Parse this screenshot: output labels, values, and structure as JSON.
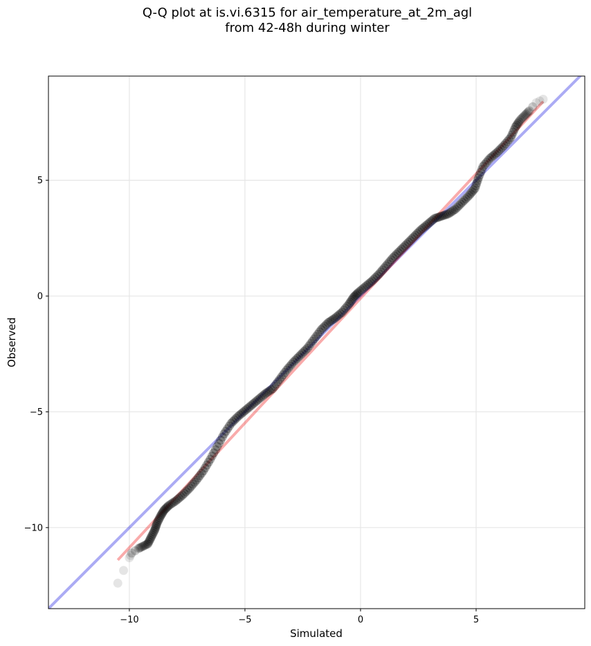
{
  "chart_data": {
    "type": "scatter",
    "title": "Q-Q plot at is.vi.6315 for air_temperature_at_2m_agl",
    "subtitle": "from 42-48h during winter",
    "xlabel": "Simulated",
    "ylabel": "Observed",
    "xlim": [
      -13.5,
      9.7
    ],
    "ylim": [
      -13.5,
      9.5
    ],
    "xticks": [
      -10,
      -5,
      0,
      5
    ],
    "yticks": [
      -10,
      -5,
      0,
      5
    ],
    "xtick_labels": [
      "−10",
      "−5",
      "0",
      "5"
    ],
    "ytick_labels": [
      "−10",
      "−5",
      "0",
      "5"
    ],
    "grid": true,
    "identity_line": {
      "color": "#0000dd",
      "x": [
        -13.5,
        9.7
      ],
      "y": [
        -13.5,
        9.7
      ]
    },
    "fit_line": {
      "color": "#ee0000",
      "x": [
        -10.5,
        7.9
      ],
      "y": [
        -11.4,
        8.4
      ]
    },
    "quantiles": [
      {
        "x": -10.5,
        "y": -12.4
      },
      {
        "x": -10.0,
        "y": -11.3
      },
      {
        "x": -9.9,
        "y": -11.1
      },
      {
        "x": -9.6,
        "y": -10.9
      },
      {
        "x": -9.4,
        "y": -10.8
      },
      {
        "x": -9.2,
        "y": -10.7
      },
      {
        "x": -9.05,
        "y": -10.4
      },
      {
        "x": -8.9,
        "y": -10.1
      },
      {
        "x": -8.8,
        "y": -9.8
      },
      {
        "x": -8.65,
        "y": -9.5
      },
      {
        "x": -8.5,
        "y": -9.25
      },
      {
        "x": -8.3,
        "y": -9.05
      },
      {
        "x": -8.0,
        "y": -8.85
      },
      {
        "x": -7.7,
        "y": -8.6
      },
      {
        "x": -7.4,
        "y": -8.3
      },
      {
        "x": -7.1,
        "y": -7.95
      },
      {
        "x": -6.8,
        "y": -7.55
      },
      {
        "x": -6.5,
        "y": -7.05
      },
      {
        "x": -6.2,
        "y": -6.5
      },
      {
        "x": -5.9,
        "y": -5.95
      },
      {
        "x": -5.6,
        "y": -5.5
      },
      {
        "x": -5.3,
        "y": -5.2
      },
      {
        "x": -5.0,
        "y": -4.95
      },
      {
        "x": -4.7,
        "y": -4.7
      },
      {
        "x": -4.4,
        "y": -4.45
      },
      {
        "x": -4.1,
        "y": -4.2
      },
      {
        "x": -3.8,
        "y": -4.0
      },
      {
        "x": -3.5,
        "y": -3.6
      },
      {
        "x": -3.2,
        "y": -3.2
      },
      {
        "x": -2.9,
        "y": -2.85
      },
      {
        "x": -2.6,
        "y": -2.55
      },
      {
        "x": -2.3,
        "y": -2.25
      },
      {
        "x": -2.0,
        "y": -1.85
      },
      {
        "x": -1.7,
        "y": -1.45
      },
      {
        "x": -1.4,
        "y": -1.15
      },
      {
        "x": -1.1,
        "y": -0.95
      },
      {
        "x": -0.8,
        "y": -0.7
      },
      {
        "x": -0.5,
        "y": -0.35
      },
      {
        "x": -0.3,
        "y": -0.05
      },
      {
        "x": -0.1,
        "y": 0.15
      },
      {
        "x": 0.2,
        "y": 0.4
      },
      {
        "x": 0.5,
        "y": 0.65
      },
      {
        "x": 0.8,
        "y": 0.95
      },
      {
        "x": 1.1,
        "y": 1.3
      },
      {
        "x": 1.4,
        "y": 1.65
      },
      {
        "x": 1.7,
        "y": 1.95
      },
      {
        "x": 2.0,
        "y": 2.25
      },
      {
        "x": 2.3,
        "y": 2.55
      },
      {
        "x": 2.6,
        "y": 2.85
      },
      {
        "x": 2.9,
        "y": 3.1
      },
      {
        "x": 3.2,
        "y": 3.35
      },
      {
        "x": 3.5,
        "y": 3.45
      },
      {
        "x": 3.8,
        "y": 3.55
      },
      {
        "x": 4.1,
        "y": 3.75
      },
      {
        "x": 4.4,
        "y": 4.05
      },
      {
        "x": 4.7,
        "y": 4.35
      },
      {
        "x": 4.95,
        "y": 4.65
      },
      {
        "x": 5.1,
        "y": 5.1
      },
      {
        "x": 5.3,
        "y": 5.6
      },
      {
        "x": 5.6,
        "y": 5.95
      },
      {
        "x": 5.9,
        "y": 6.2
      },
      {
        "x": 6.2,
        "y": 6.5
      },
      {
        "x": 6.5,
        "y": 6.85
      },
      {
        "x": 6.7,
        "y": 7.3
      },
      {
        "x": 6.9,
        "y": 7.6
      },
      {
        "x": 7.1,
        "y": 7.8
      },
      {
        "x": 7.3,
        "y": 8.0
      },
      {
        "x": 7.6,
        "y": 8.35
      },
      {
        "x": 7.9,
        "y": 8.5
      }
    ]
  }
}
